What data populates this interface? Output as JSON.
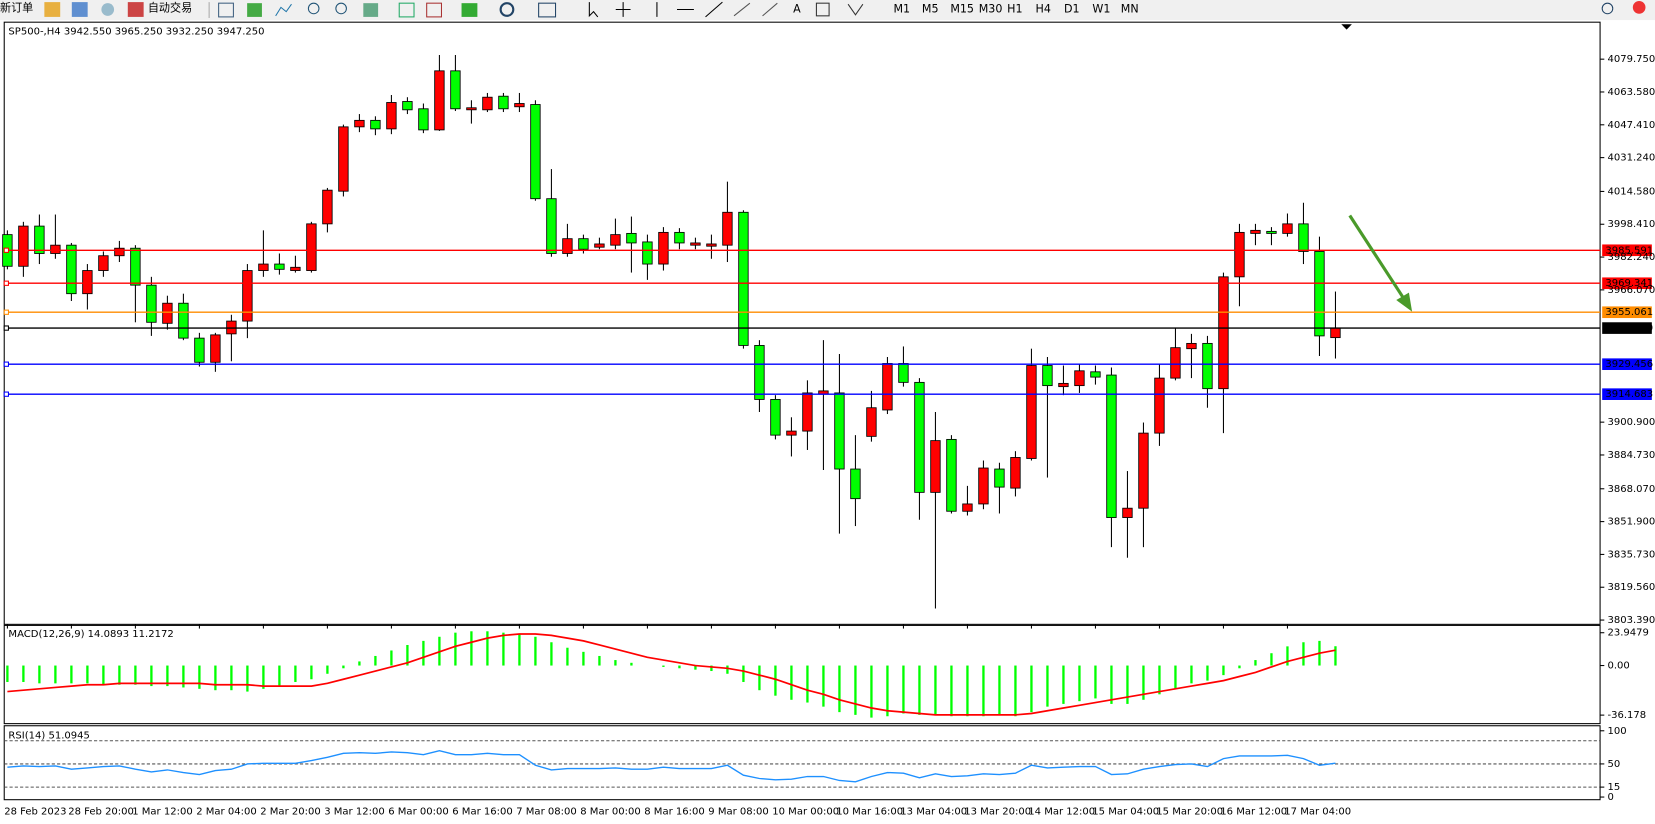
{
  "toolbar": {
    "new_order": "新订单",
    "auto_trading": "自动交易",
    "timeframes": [
      "M1",
      "M5",
      "M15",
      "M30",
      "H1",
      "H4",
      "D1",
      "W1",
      "MN"
    ]
  },
  "chart_data": [
    {
      "type": "candlestick",
      "title": "SP500-,H4  3942.550 3965.250 3932.250 3947.250",
      "categories": [
        "28 Feb 2023",
        null,
        null,
        null,
        "28 Feb 20:00",
        null,
        null,
        null,
        "1 Mar 12:00",
        null,
        null,
        null,
        "2 Mar 04:00",
        null,
        null,
        null,
        "2 Mar 20:00",
        null,
        null,
        null,
        "3 Mar 12:00",
        null,
        null,
        null,
        "6 Mar 00:00",
        null,
        null,
        null,
        "6 Mar 16:00",
        null,
        null,
        null,
        "7 Mar 08:00",
        null,
        null,
        null,
        "8 Mar 00:00",
        null,
        null,
        null,
        "8 Mar 16:00",
        null,
        null,
        null,
        "9 Mar 08:00",
        null,
        null,
        null,
        "10 Mar 00:00",
        null,
        null,
        null,
        "10 Mar 16:00",
        null,
        null,
        null,
        "13 Mar 04:00",
        null,
        null,
        null,
        "13 Mar 20:00",
        null,
        null,
        null,
        "14 Mar 12:00",
        null,
        null,
        null,
        "15 Mar 04:00",
        null,
        null,
        null,
        "15 Mar 20:00",
        null,
        null,
        null,
        "16 Mar 12:00",
        null,
        null,
        null,
        "17 Mar 04:00",
        null,
        null,
        null
      ],
      "open": [
        3993.3,
        3977.7,
        3997.5,
        3984.0,
        3988.1,
        3964.2,
        3975.6,
        3982.9,
        3986.6,
        3968.4,
        3949.6,
        3959.5,
        3942.3,
        3930.4,
        3944.4,
        3950.7,
        3975.6,
        3978.8,
        3975.6,
        3975.6,
        3998.6,
        4014.7,
        4046.4,
        4049.6,
        4045.4,
        4058.9,
        4055.3,
        4044.9,
        4074.0,
        4054.8,
        4054.8,
        4061.5,
        4056.3,
        4057.4,
        4011.0,
        3984.0,
        3991.3,
        3987.1,
        3988.1,
        3993.9,
        3989.7,
        3978.8,
        3994.4,
        3988.1,
        3987.6,
        3988.1,
        4004.3,
        3938.7,
        3912.1,
        3894.5,
        3896.5,
        3914.7,
        3915.3,
        3877.8,
        3893.9,
        3906.9,
        3929.8,
        3920.5,
        3866.3,
        3892.4,
        3857.0,
        3860.6,
        3877.8,
        3868.4,
        3883.0,
        3928.8,
        3918.4,
        3918.9,
        3925.7,
        3924.1,
        3853.9,
        3858.5,
        3895.5,
        3922.6,
        3937.1,
        3939.7,
        3917.4,
        3972.5,
        3993.9,
        3994.9,
        3993.9,
        3998.6,
        3985.0,
        3942.55
      ],
      "high": [
        3995.4,
        3999.6,
        4003.2,
        4003.2,
        3989.2,
        3978.8,
        3985.0,
        3990.2,
        3988.1,
        3972.5,
        3963.2,
        3964.2,
        3944.9,
        3944.9,
        3953.8,
        3978.8,
        3995.4,
        3984.0,
        3982.9,
        3999.6,
        4016.3,
        4047.5,
        4052.7,
        4051.6,
        4062.1,
        4061.0,
        4057.9,
        4081.8,
        4081.8,
        4059.5,
        4063.1,
        4063.1,
        4063.1,
        4059.5,
        4025.6,
        3998.6,
        3993.3,
        3991.8,
        4001.2,
        4002.2,
        3993.3,
        3997.0,
        3996.5,
        3991.8,
        3993.3,
        4019.4,
        4005.3,
        3941.3,
        3914.2,
        3903.3,
        3921.5,
        3941.3,
        3934.5,
        3894.5,
        3916.3,
        3933.0,
        3938.2,
        3922.6,
        3905.9,
        3894.5,
        3869.5,
        3882.0,
        3880.9,
        3886.6,
        3937.1,
        3933.0,
        3928.8,
        3929.8,
        3928.8,
        3927.8,
        3876.8,
        3900.7,
        3929.3,
        3947.5,
        3944.4,
        3943.4,
        3974.6,
        3998.6,
        3998.6,
        3997.0,
        4003.7,
        4009.0,
        3992.3,
        3965.25
      ],
      "low": [
        3976.2,
        3972.5,
        3978.8,
        3981.4,
        3960.6,
        3956.4,
        3972.5,
        3979.8,
        3950.1,
        3943.4,
        3946.5,
        3941.3,
        3928.3,
        3925.7,
        3930.9,
        3942.3,
        3972.5,
        3973.6,
        3974.6,
        3974.6,
        3994.4,
        4012.1,
        4043.8,
        4042.3,
        4042.8,
        4052.7,
        4043.3,
        4044.4,
        4054.2,
        4048.0,
        4053.7,
        4053.7,
        4053.7,
        4010.0,
        3982.4,
        3982.4,
        3984.0,
        3986.1,
        3986.1,
        3974.6,
        3971.0,
        3975.6,
        3986.1,
        3986.1,
        3981.4,
        3979.8,
        3937.1,
        3905.9,
        3892.4,
        3884.0,
        3887.2,
        3877.3,
        3846.0,
        3849.7,
        3891.3,
        3904.9,
        3918.4,
        3852.8,
        3809.1,
        3855.9,
        3854.9,
        3858.0,
        3855.9,
        3864.3,
        3882.0,
        3873.6,
        3914.2,
        3915.3,
        3919.4,
        3839.3,
        3834.1,
        3839.3,
        3889.2,
        3921.5,
        3922.6,
        3908.0,
        3895.5,
        3958.0,
        3988.1,
        3988.1,
        3992.3,
        3978.8,
        3933.5,
        3932.25
      ],
      "close": [
        3977.7,
        3997.5,
        3984.0,
        3988.1,
        3964.2,
        3975.6,
        3982.9,
        3986.6,
        3968.4,
        3950.1,
        3959.5,
        3942.3,
        3930.4,
        3943.9,
        3950.7,
        3975.6,
        3978.8,
        3976.2,
        3977.2,
        3998.6,
        4015.2,
        4046.4,
        4049.6,
        4045.4,
        4058.4,
        4054.8,
        4044.9,
        4074.0,
        4055.3,
        4055.8,
        4061.0,
        4055.3,
        4057.9,
        4011.0,
        3984.0,
        3991.3,
        3986.1,
        3988.7,
        3993.3,
        3989.2,
        3978.8,
        3994.4,
        3989.2,
        3989.2,
        3988.7,
        4004.3,
        3938.7,
        3912.1,
        3894.5,
        3896.5,
        3915.3,
        3916.3,
        3877.8,
        3863.2,
        3908.0,
        3929.8,
        3920.5,
        3866.3,
        3891.8,
        3857.0,
        3860.6,
        3878.3,
        3868.9,
        3883.5,
        3928.8,
        3918.9,
        3920.0,
        3926.2,
        3923.1,
        3853.9,
        3858.5,
        3895.5,
        3922.6,
        3937.6,
        3939.7,
        3917.4,
        3972.5,
        3994.4,
        3995.4,
        3993.9,
        3998.6,
        3985.0,
        3943.4,
        3947.25
      ],
      "up_color": "#ff0000",
      "down_color": "#00ff00",
      "ylim": [
        3801.8,
        4097.45
      ],
      "yticks": [
        {
          "value": 4079.75,
          "label": "4079.750"
        },
        {
          "value": 4063.58,
          "label": "4063.580"
        },
        {
          "value": 4047.41,
          "label": "4047.410"
        },
        {
          "value": 4031.24,
          "label": "4031.240"
        },
        {
          "value": 4014.58,
          "label": "4014.580"
        },
        {
          "value": 3998.41,
          "label": "3998.410"
        },
        {
          "value": 3982.24,
          "label": "3982.240"
        },
        {
          "value": 3966.07,
          "label": "3966.070"
        },
        {
          "value": 3900.9,
          "label": "3900.900"
        },
        {
          "value": 3884.73,
          "label": "3884.730"
        },
        {
          "value": 3868.07,
          "label": "3868.070"
        },
        {
          "value": 3851.9,
          "label": "3851.900"
        },
        {
          "value": 3835.73,
          "label": "3835.730"
        },
        {
          "value": 3819.56,
          "label": "3819.560"
        },
        {
          "value": 3803.39,
          "label": "3803.390"
        }
      ],
      "hlines": [
        {
          "value": 3985.591,
          "label": "3985.591",
          "color": "#ff0000"
        },
        {
          "value": 3969.341,
          "label": "3969.341",
          "color": "#ff0000"
        },
        {
          "value": 3955.061,
          "label": "3955.061",
          "color": "#ff8c00"
        },
        {
          "value": 3947.25,
          "label": "3947.250",
          "color": "#000000"
        },
        {
          "value": 3929.456,
          "label": "3929.456",
          "color": "#0000ff"
        },
        {
          "value": 3914.683,
          "label": "3914.683",
          "color": "#0000ff"
        }
      ]
    },
    {
      "type": "macd",
      "title": "MACD(12,26,9) 14.0893 11.2172",
      "histogram": {
        "color": "#00ff00",
        "values": [
          -12,
          -12,
          -13,
          -13,
          -13,
          -13,
          -14,
          -14,
          -14,
          -15,
          -15,
          -16,
          -17,
          -18,
          -18,
          -19,
          -17,
          -15,
          -12,
          -10,
          -6,
          -2,
          3,
          7,
          11,
          15,
          18,
          21,
          24,
          25,
          25,
          24,
          23,
          21,
          17,
          13,
          10,
          7,
          4,
          2,
          0,
          -1,
          -2,
          -3,
          -4,
          -6,
          -12,
          -18,
          -22,
          -25,
          -27,
          -30,
          -34,
          -36,
          -38,
          -37,
          -35,
          -36,
          -36,
          -37,
          -37,
          -37,
          -36,
          -37,
          -34,
          -30,
          -28,
          -26,
          -24,
          -28,
          -28,
          -25,
          -21,
          -17,
          -13,
          -11,
          -7,
          -2,
          4,
          9,
          14,
          17,
          18,
          14.0893
        ]
      },
      "signal": {
        "color": "#ff0000",
        "values": [
          -19,
          -18,
          -17,
          -16,
          -15,
          -14,
          -14,
          -13,
          -13,
          -13,
          -13,
          -13,
          -13,
          -14,
          -14,
          -14,
          -15,
          -15,
          -15,
          -15,
          -13,
          -10,
          -7,
          -4,
          -1,
          2,
          6,
          10,
          14,
          17,
          20,
          22,
          23,
          23,
          22,
          20,
          18,
          15,
          12,
          9,
          6,
          4,
          2,
          0,
          -1,
          -2,
          -4,
          -7,
          -10,
          -14,
          -18,
          -21,
          -25,
          -28,
          -31,
          -33,
          -34,
          -35,
          -36,
          -36,
          -36,
          -36,
          -36,
          -36,
          -35,
          -33,
          -31,
          -29,
          -27,
          -25,
          -23,
          -21,
          -19,
          -17,
          -15,
          -13,
          -11,
          -8,
          -5,
          -1,
          3,
          6,
          9,
          11.2172
        ]
      },
      "ylim": [
        -42.4,
        29.3
      ],
      "yticks": [
        23.9479,
        {
          "value": 0,
          "label": "0.00"
        },
        -36.178
      ]
    },
    {
      "type": "line",
      "title": "RSI(14) 51.0945",
      "color": "#1e90ff",
      "values": [
        45,
        47,
        46,
        47,
        42,
        44,
        46,
        47,
        42,
        38,
        41,
        37,
        34,
        40,
        42,
        50,
        51,
        51,
        51,
        55,
        60,
        66,
        67,
        66,
        68,
        67,
        64,
        70,
        64,
        64,
        66,
        64,
        64,
        48,
        41,
        43,
        43,
        43,
        44,
        42,
        42,
        45,
        43,
        43,
        43,
        48,
        33,
        28,
        26,
        27,
        31,
        31,
        25,
        23,
        31,
        37,
        36,
        29,
        35,
        31,
        32,
        35,
        34,
        36,
        48,
        44,
        45,
        46,
        46,
        34,
        35,
        42,
        46,
        49,
        50,
        46,
        58,
        62,
        62,
        62,
        63,
        58,
        48,
        51.0945
      ],
      "ylim": [
        -4,
        106
      ],
      "yticks": [
        100,
        50,
        15,
        0
      ],
      "levels": [
        85,
        50,
        15
      ]
    }
  ]
}
